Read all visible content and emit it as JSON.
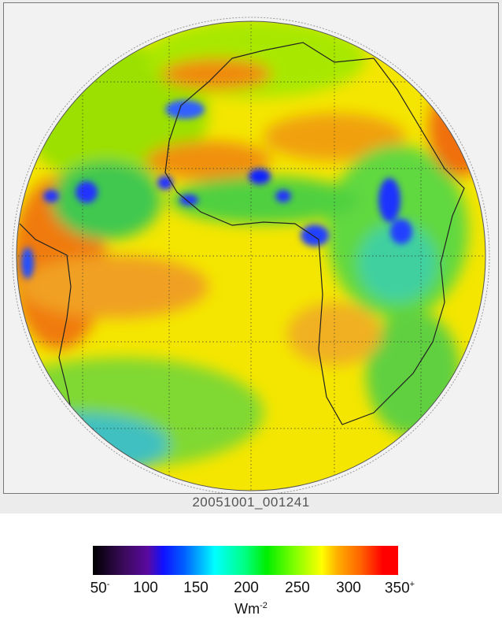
{
  "image": {
    "timestamp_label": "20051001_001241",
    "description_kind": "full-disk satellite radiation map centered on Africa/Atlantic"
  },
  "colorbar": {
    "ticks": [
      {
        "value": "50",
        "suffix": "-"
      },
      {
        "value": "100",
        "suffix": ""
      },
      {
        "value": "150",
        "suffix": ""
      },
      {
        "value": "200",
        "suffix": ""
      },
      {
        "value": "250",
        "suffix": ""
      },
      {
        "value": "300",
        "suffix": ""
      },
      {
        "value": "350",
        "suffix": "+"
      }
    ],
    "unit_base": "Wm",
    "unit_exp": "-2",
    "range": [
      50,
      350
    ],
    "colors": [
      "#000000",
      "#5a0aa0",
      "#1010ff",
      "#00ffff",
      "#00ee00",
      "#ffff00",
      "#ff6000",
      "#ff0000"
    ]
  }
}
